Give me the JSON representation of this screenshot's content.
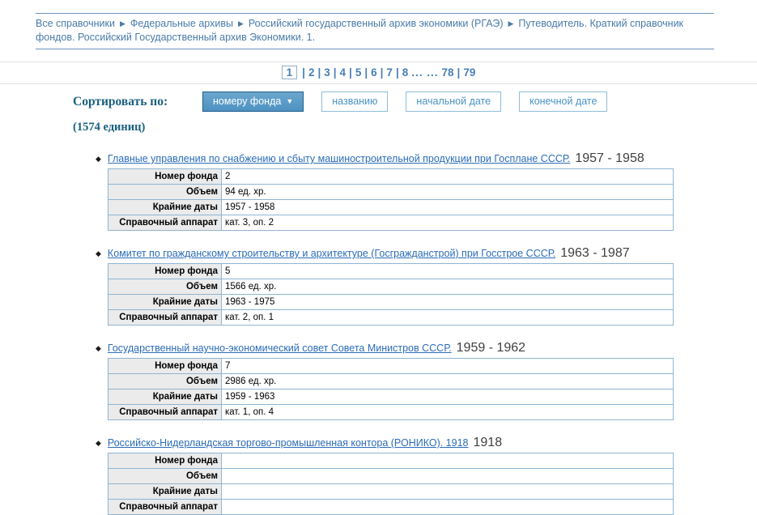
{
  "breadcrumb": {
    "separator": "▶",
    "items": [
      "Все справочники",
      "Федеральные архивы",
      "Российский государственный архив экономики (РГАЭ)",
      "Путеводитель. Краткий справочник фондов. Российский Государственный архив Экономики. 1."
    ]
  },
  "pagination": {
    "current": "1",
    "separator": "|",
    "pages": [
      "2",
      "3",
      "4",
      "5",
      "6",
      "7",
      "8"
    ],
    "ellipsis": "... ...",
    "last": [
      "78",
      "79"
    ]
  },
  "sort": {
    "label": "Сортировать по:",
    "count_label": "(1574 единиц)",
    "dropdown_arrow": "▼",
    "buttons": [
      {
        "label": "номеру фонда",
        "active": true
      },
      {
        "label": "названию",
        "active": false
      },
      {
        "label": "начальной дате",
        "active": false
      },
      {
        "label": "конечной дате",
        "active": false
      }
    ]
  },
  "field_labels": {
    "fund_number": "Номер фонда",
    "volume": "Объем",
    "dates": "Крайние даты",
    "reference": "Справочный аппарат"
  },
  "list": {
    "bullet": "◆"
  },
  "entries": [
    {
      "title": "Главные управления по снабжению и сбыту машиностроительной продукции при Госплане СССР.",
      "date_range": "1957 - 1958",
      "fund_number": "2",
      "volume": "94 ед. хр.",
      "dates": "1957 - 1958",
      "reference": "кат. 3, оп. 2"
    },
    {
      "title": "Комитет по гражданскому строительству и архитектуре (Госгражданстрой) при Госстрое СССР.",
      "date_range": "1963 - 1987",
      "fund_number": "5",
      "volume": "1566 ед. хр.",
      "dates": "1963 - 1975",
      "reference": "кат. 2, оп. 1"
    },
    {
      "title": "Государственный научно-экономический совет Совета Министров СССР.",
      "date_range": "1959 - 1962",
      "fund_number": "7",
      "volume": "2986 ед. хр.",
      "dates": "1959 - 1963",
      "reference": "кат. 1, оп. 4"
    },
    {
      "title": "Российско-Нидерландская торгово-промышленная контора (РОНИКО). 1918",
      "date_range": "1918",
      "fund_number": "",
      "volume": "",
      "dates": "",
      "reference": ""
    }
  ],
  "colors": {
    "breadcrumb_text": "#4a7ba8",
    "breadcrumb_rule": "#6d94bf",
    "pagination_text": "#4a7fb5",
    "band_divider": "#e2e2e2",
    "sort_heading": "#1a607f",
    "active_button_bg": "#5599c8",
    "active_button_border": "#24608c",
    "button_border": "#8fbcd9",
    "button_text": "#4a93c4",
    "link_blue": "#2b6cb8",
    "table_border": "#8fb4d2",
    "label_cell_bg": "#ebebeb"
  }
}
